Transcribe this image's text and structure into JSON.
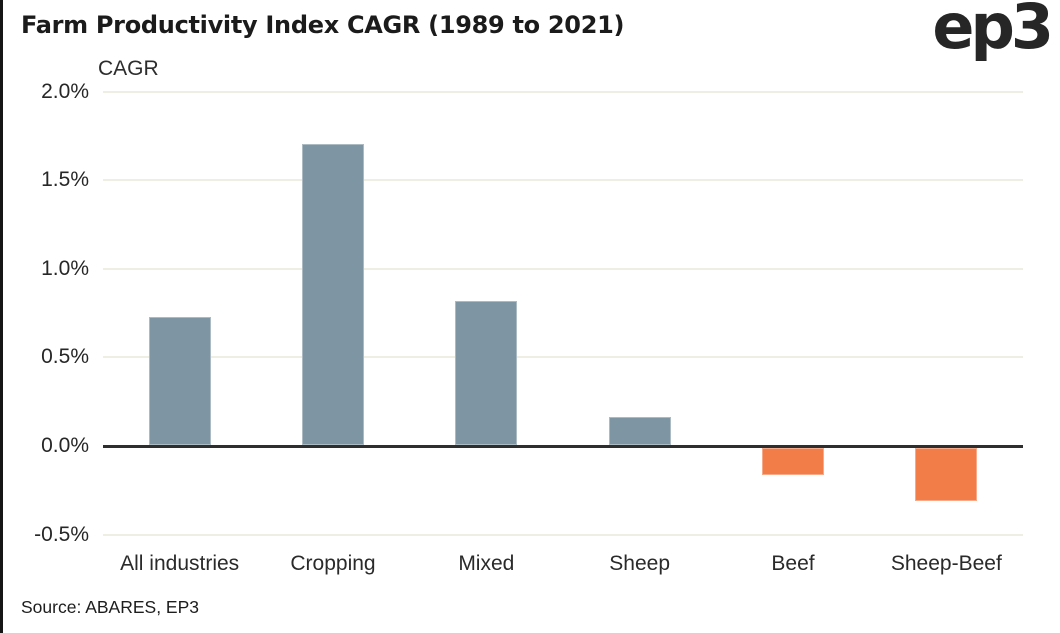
{
  "header": {
    "title": "Farm Productivity Index CAGR (1989 to 2021)",
    "logo_text": "ep3"
  },
  "chart_data": {
    "type": "bar",
    "title": "Farm Productivity Index CAGR (1989 to 2021)",
    "ylabel": "CAGR",
    "xlabel": "",
    "categories": [
      "All industries",
      "Cropping",
      "Mixed",
      "Sheep",
      "Beef",
      "Sheep-Beef"
    ],
    "values": [
      0.72,
      1.7,
      0.81,
      0.16,
      -0.15,
      -0.3
    ],
    "unit": "%",
    "ylim": [
      -0.5,
      2.0
    ],
    "yticks": [
      2.0,
      1.5,
      1.0,
      0.5,
      0.0,
      -0.5
    ],
    "ytick_labels": [
      "2.0%",
      "1.5%",
      "1.0%",
      "0.5%",
      "0.0%",
      "-0.5%"
    ],
    "grid": true,
    "legend": "none",
    "colors": {
      "positive": "#7E95A4",
      "negative": "#F27D49",
      "gridline": "#EFEEE2",
      "axis": "#2E2E2E",
      "title_text": "#1B1B1B"
    }
  },
  "footer": {
    "source": "Source: ABARES, EP3"
  }
}
